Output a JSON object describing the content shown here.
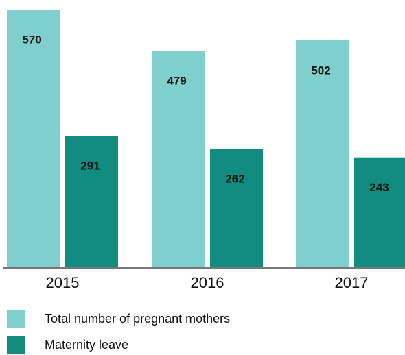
{
  "chart_data": {
    "type": "bar",
    "categories": [
      "2015",
      "2016",
      "2017"
    ],
    "series": [
      {
        "name": "Total number of pregnant mothers",
        "color": "#7fcfcf",
        "values": [
          570,
          479,
          502
        ]
      },
      {
        "name": "Maternity leave",
        "color": "#128c7e",
        "values": [
          291,
          262,
          243
        ]
      }
    ]
  }
}
